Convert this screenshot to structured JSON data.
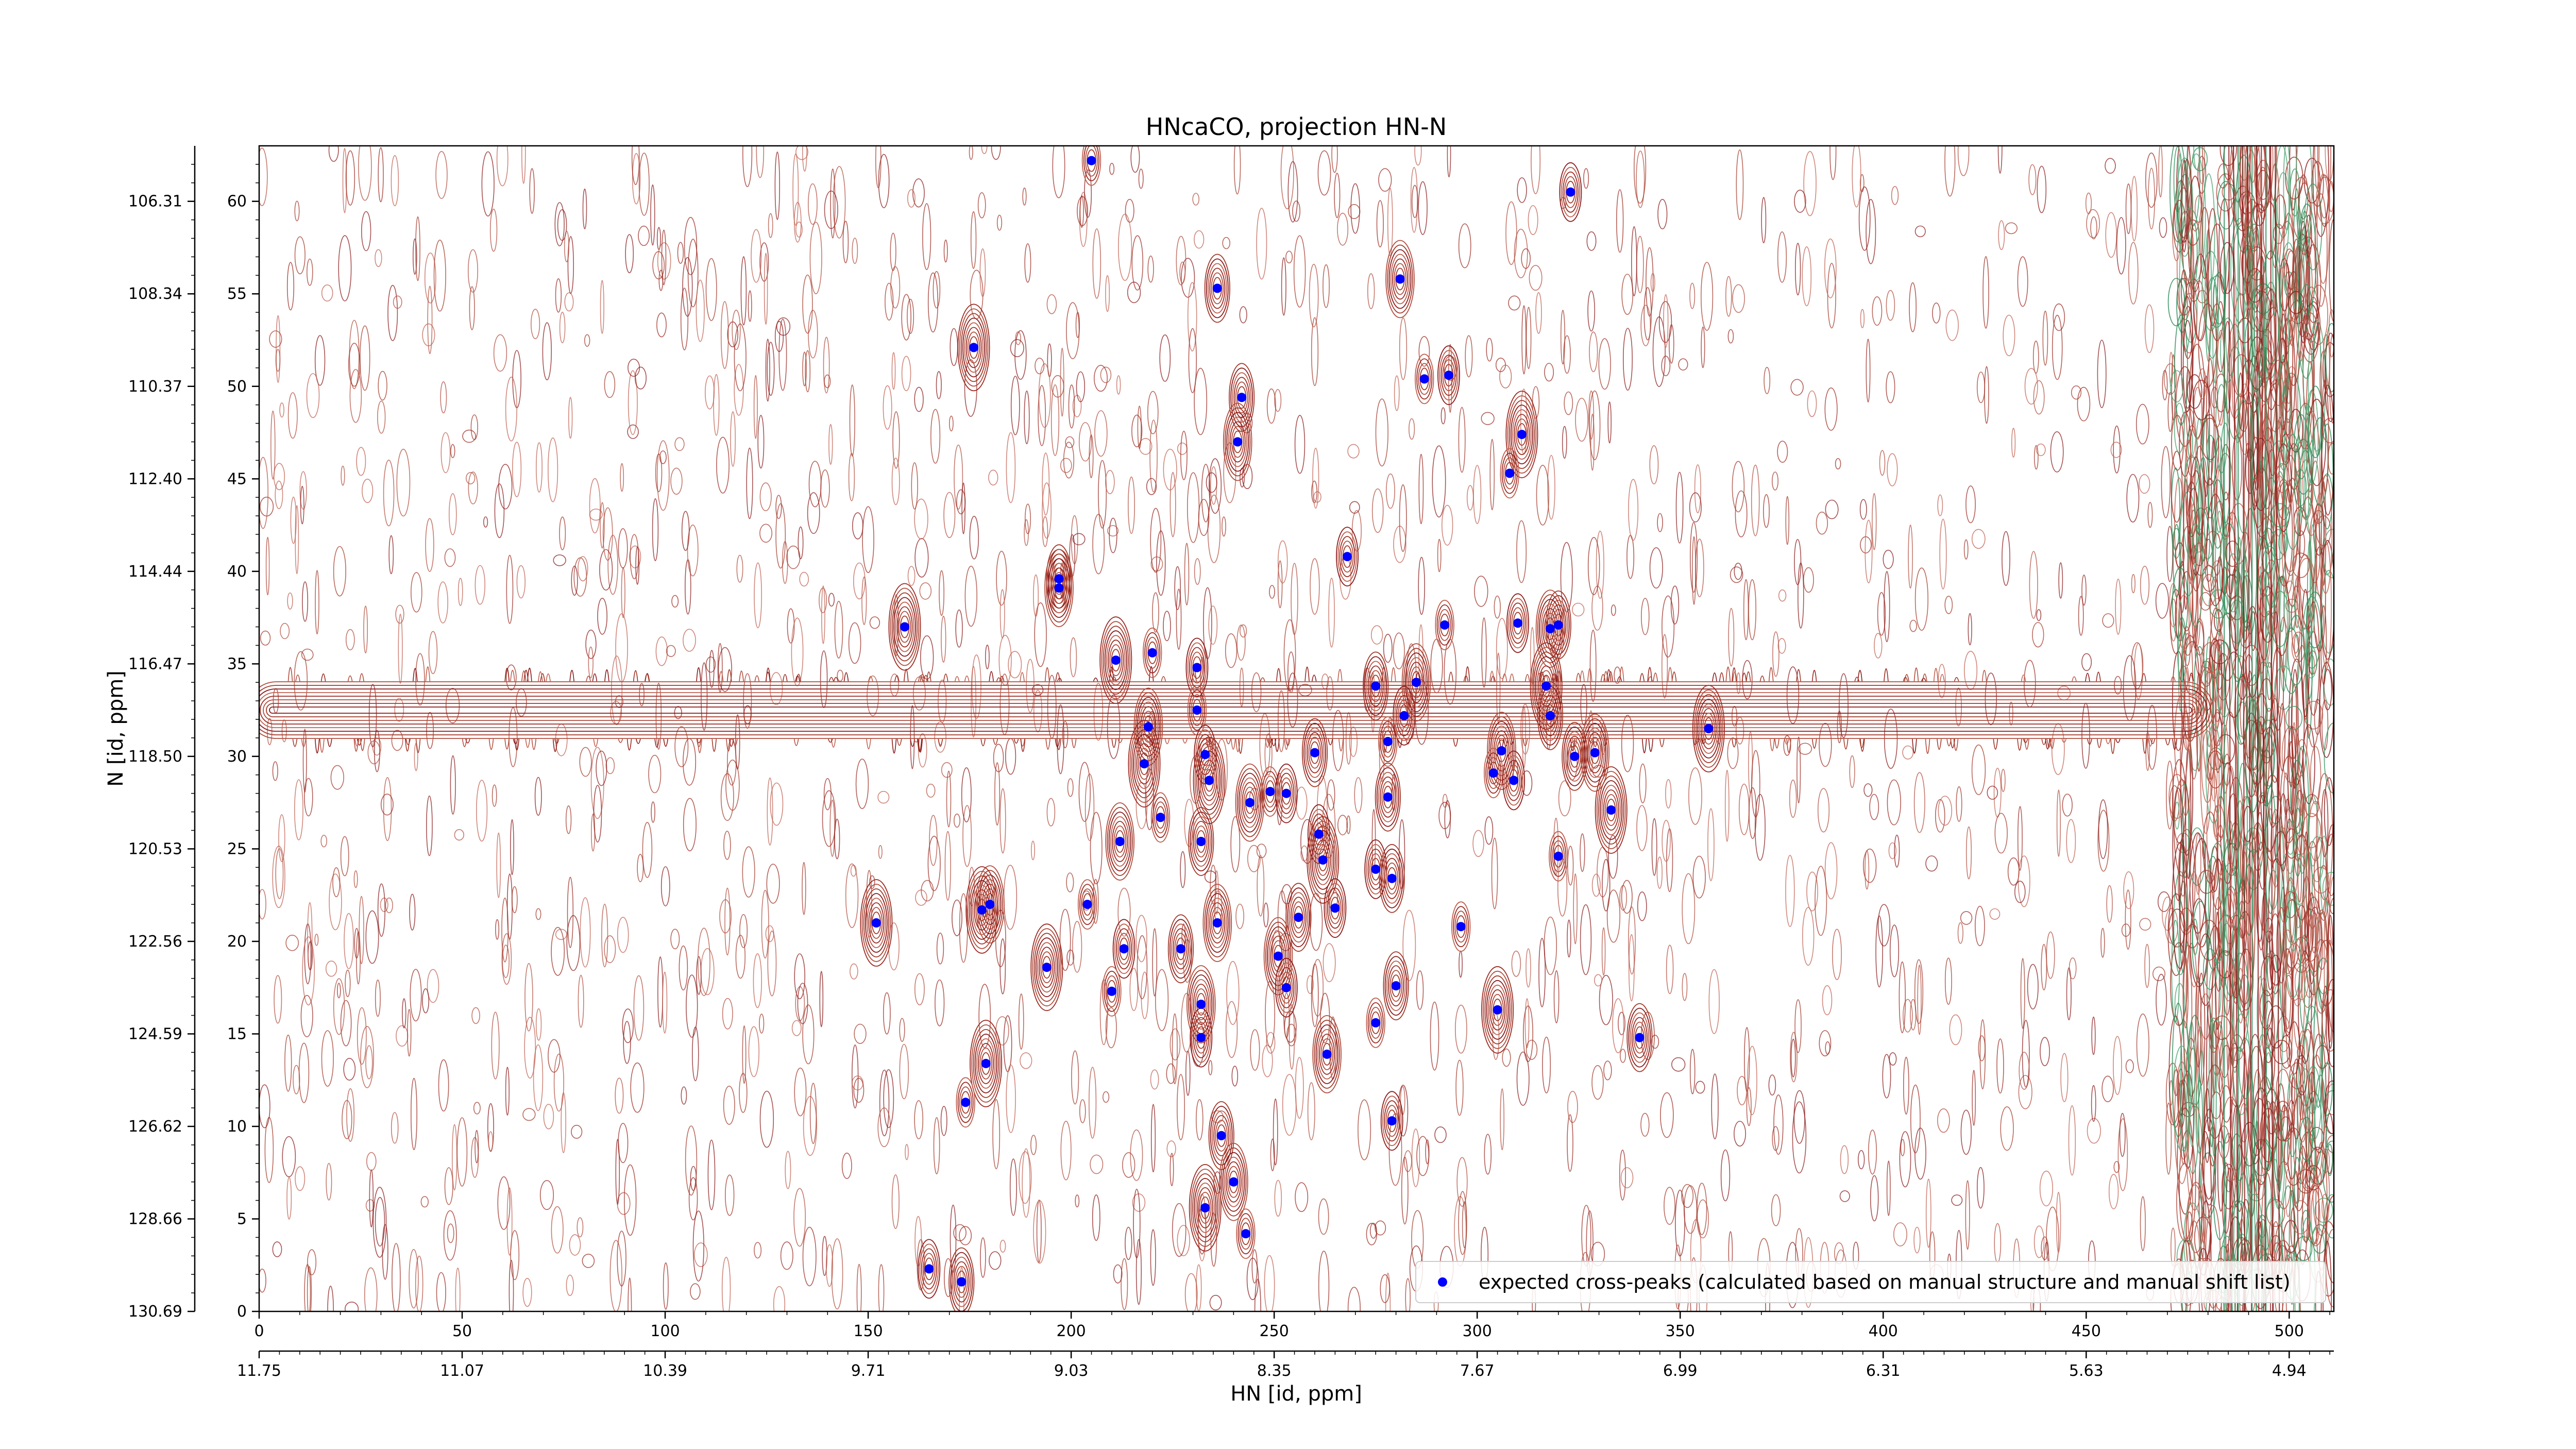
{
  "chart_data": {
    "type": "scatter",
    "title": "HNcaCO, projection HN-N",
    "xlabel": "HN [id, ppm]",
    "ylabel": "N [id, ppm]",
    "xlim": [
      0,
      511
    ],
    "ylim": [
      0,
      63
    ],
    "grid": false,
    "legend": "bottom-right",
    "x_index_ticks": [
      0,
      50,
      100,
      150,
      200,
      250,
      300,
      350,
      400,
      450,
      500
    ],
    "x_ppm_ticks": [
      {
        "index": 0,
        "label": "11.75"
      },
      {
        "index": 50,
        "label": "11.07"
      },
      {
        "index": 100,
        "label": "10.39"
      },
      {
        "index": 150,
        "label": "9.71"
      },
      {
        "index": 200,
        "label": "9.03"
      },
      {
        "index": 250,
        "label": "8.35"
      },
      {
        "index": 300,
        "label": "7.67"
      },
      {
        "index": 350,
        "label": "6.99"
      },
      {
        "index": 400,
        "label": "6.31"
      },
      {
        "index": 450,
        "label": "5.63"
      },
      {
        "index": 500,
        "label": "4.94"
      }
    ],
    "y_index_ticks": [
      0,
      5,
      10,
      15,
      20,
      25,
      30,
      35,
      40,
      45,
      50,
      55,
      60
    ],
    "y_ppm_ticks": [
      {
        "index": 0,
        "label": "130.69"
      },
      {
        "index": 5,
        "label": "128.66"
      },
      {
        "index": 10,
        "label": "126.62"
      },
      {
        "index": 15,
        "label": "124.59"
      },
      {
        "index": 20,
        "label": "122.56"
      },
      {
        "index": 25,
        "label": "120.53"
      },
      {
        "index": 30,
        "label": "118.50"
      },
      {
        "index": 35,
        "label": "116.47"
      },
      {
        "index": 40,
        "label": "114.44"
      },
      {
        "index": 45,
        "label": "112.40"
      },
      {
        "index": 50,
        "label": "110.37"
      },
      {
        "index": 55,
        "label": "108.34"
      },
      {
        "index": 60,
        "label": "106.31"
      }
    ],
    "series": [
      {
        "name": "expected cross-peaks (calculated based on manual structure and manual shift list)",
        "color": "#0000ff",
        "points": [
          [
            205,
            62.2
          ],
          [
            323,
            60.5
          ],
          [
            236,
            55.3
          ],
          [
            281,
            55.8
          ],
          [
            176,
            52.1
          ],
          [
            287,
            50.4
          ],
          [
            293,
            50.6
          ],
          [
            242,
            49.4
          ],
          [
            241,
            47.0
          ],
          [
            311,
            47.4
          ],
          [
            308,
            45.3
          ],
          [
            268,
            40.8
          ],
          [
            197,
            39.6
          ],
          [
            197,
            39.1
          ],
          [
            159,
            37.0
          ],
          [
            292,
            37.1
          ],
          [
            310,
            37.2
          ],
          [
            320,
            37.1
          ],
          [
            318,
            36.9
          ],
          [
            211,
            35.2
          ],
          [
            220,
            35.6
          ],
          [
            231,
            34.8
          ],
          [
            275,
            33.8
          ],
          [
            285,
            34.0
          ],
          [
            317,
            33.8
          ],
          [
            231,
            32.5
          ],
          [
            282,
            32.2
          ],
          [
            318,
            32.2
          ],
          [
            219,
            31.6
          ],
          [
            357,
            31.5
          ],
          [
            278,
            30.8
          ],
          [
            233,
            30.1
          ],
          [
            260,
            30.2
          ],
          [
            306,
            30.3
          ],
          [
            218,
            29.6
          ],
          [
            304,
            29.1
          ],
          [
            309,
            28.7
          ],
          [
            324,
            30.0
          ],
          [
            329,
            30.2
          ],
          [
            234,
            28.7
          ],
          [
            249,
            28.1
          ],
          [
            253,
            28.0
          ],
          [
            278,
            27.8
          ],
          [
            244,
            27.5
          ],
          [
            333,
            27.1
          ],
          [
            222,
            26.7
          ],
          [
            261,
            25.8
          ],
          [
            232,
            25.4
          ],
          [
            212,
            25.4
          ],
          [
            262,
            24.4
          ],
          [
            320,
            24.6
          ],
          [
            275,
            23.9
          ],
          [
            279,
            23.4
          ],
          [
            180,
            22.0
          ],
          [
            178,
            21.7
          ],
          [
            204,
            22.0
          ],
          [
            265,
            21.8
          ],
          [
            256,
            21.3
          ],
          [
            236,
            21.0
          ],
          [
            152,
            21.0
          ],
          [
            296,
            20.8
          ],
          [
            213,
            19.6
          ],
          [
            227,
            19.6
          ],
          [
            251,
            19.2
          ],
          [
            194,
            18.6
          ],
          [
            210,
            17.3
          ],
          [
            253,
            17.5
          ],
          [
            280,
            17.6
          ],
          [
            232,
            16.6
          ],
          [
            305,
            16.3
          ],
          [
            275,
            15.6
          ],
          [
            232,
            14.8
          ],
          [
            340,
            14.8
          ],
          [
            263,
            13.9
          ],
          [
            179,
            13.4
          ],
          [
            174,
            11.3
          ],
          [
            279,
            10.3
          ],
          [
            237,
            9.5
          ],
          [
            240,
            7.0
          ],
          [
            233,
            5.6
          ],
          [
            243,
            4.2
          ],
          [
            165,
            2.3
          ],
          [
            173,
            1.6
          ]
        ]
      }
    ]
  }
}
